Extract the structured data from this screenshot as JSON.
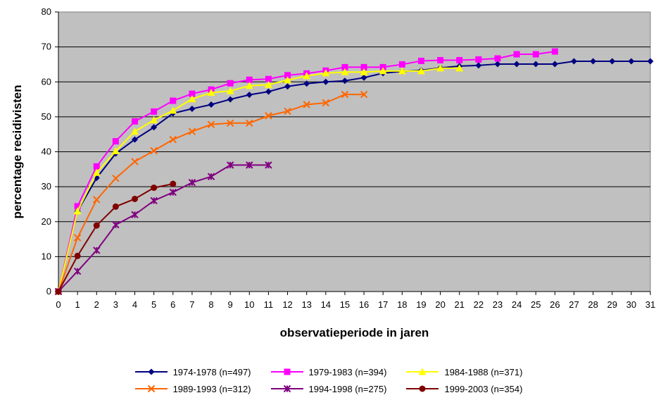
{
  "chart_data": {
    "type": "line",
    "title": "",
    "xlabel": "observatieperiode in jaren",
    "ylabel": "percentage recidivisten",
    "xlim": [
      0,
      31
    ],
    "ylim": [
      0,
      80
    ],
    "x_ticks": [
      "0",
      "1",
      "2",
      "3",
      "4",
      "5",
      "6",
      "7",
      "8",
      "9",
      "10",
      "11",
      "12",
      "13",
      "14",
      "15",
      "16",
      "17",
      "18",
      "19",
      "20",
      "21",
      "22",
      "23",
      "24",
      "25",
      "26",
      "27",
      "28",
      "29",
      "30",
      "31"
    ],
    "y_ticks": [
      "0",
      "10",
      "20",
      "30",
      "40",
      "50",
      "60",
      "70",
      "80"
    ],
    "grid": "horizontal",
    "plot_background": "#c0c0c0",
    "legend_position": "bottom",
    "series": [
      {
        "name": "1974-1978 (n=497)",
        "color": "#000080",
        "marker": "diamond",
        "x": [
          0,
          1,
          2,
          3,
          4,
          5,
          6,
          7,
          8,
          9,
          10,
          11,
          12,
          13,
          14,
          15,
          16,
          17,
          18,
          19,
          20,
          21,
          22,
          23,
          24,
          25,
          26,
          27,
          28,
          29,
          30,
          31
        ],
        "values": [
          0,
          23,
          32.5,
          39.5,
          43.5,
          47,
          51,
          52.3,
          53.5,
          55,
          56.3,
          57.2,
          58.7,
          59.5,
          60,
          60.3,
          61.2,
          62.5,
          63,
          63.3,
          64,
          64.5,
          64.7,
          65.1,
          65.1,
          65.1,
          65.1,
          65.9,
          65.9,
          65.9,
          65.9,
          65.9
        ]
      },
      {
        "name": "1979-1983 (n=394)",
        "color": "#ff00ff",
        "marker": "square",
        "x": [
          0,
          1,
          2,
          3,
          4,
          5,
          6,
          7,
          8,
          9,
          10,
          11,
          12,
          13,
          14,
          15,
          16,
          17,
          18,
          19,
          20,
          21,
          22,
          23,
          24,
          25,
          26
        ],
        "values": [
          0,
          24.4,
          35.8,
          43,
          48.7,
          51.5,
          54.6,
          56.6,
          57.8,
          59.6,
          60.6,
          60.8,
          61.9,
          62.4,
          63.2,
          64.2,
          64.2,
          64.2,
          65,
          66,
          66.2,
          66.2,
          66.4,
          66.7,
          67.9,
          67.9,
          68.7
        ]
      },
      {
        "name": "1984-1988 (n=371)",
        "color": "#ffff00",
        "marker": "triangle",
        "x": [
          0,
          1,
          2,
          3,
          4,
          5,
          6,
          7,
          8,
          9,
          10,
          11,
          12,
          13,
          14,
          15,
          16,
          17,
          18,
          19,
          20,
          21
        ],
        "values": [
          0,
          23,
          34,
          40.2,
          45.8,
          49.1,
          51.8,
          55.1,
          56.9,
          57.4,
          58.9,
          59.2,
          60.5,
          61.7,
          62.5,
          62.8,
          62.8,
          63.1,
          63.1,
          63.1,
          63.9,
          63.9
        ]
      },
      {
        "name": "1989-1993 (n=312)",
        "color": "#ff6600",
        "marker": "x",
        "x": [
          0,
          1,
          2,
          3,
          4,
          5,
          6,
          7,
          8,
          9,
          10,
          11,
          12,
          13,
          14,
          15,
          16
        ],
        "values": [
          0,
          15.4,
          26.3,
          32.4,
          37.2,
          40.3,
          43.5,
          45.8,
          47.8,
          48.2,
          48.2,
          50.3,
          51.6,
          53.5,
          54,
          56.4,
          56.4
        ]
      },
      {
        "name": "1994-1998 (n=275)",
        "color": "#800080",
        "marker": "star",
        "x": [
          0,
          1,
          2,
          3,
          4,
          5,
          6,
          7,
          8,
          9,
          10,
          11
        ],
        "values": [
          0,
          5.8,
          11.8,
          19.1,
          22,
          26,
          28.4,
          31.2,
          32.9,
          36.2,
          36.2,
          36.2
        ]
      },
      {
        "name": "1999-2003 (n=354)",
        "color": "#800000",
        "marker": "circle",
        "x": [
          0,
          1,
          2,
          3,
          4,
          5,
          6
        ],
        "values": [
          0,
          10.2,
          18.9,
          24.3,
          26.5,
          29.7,
          30.8
        ]
      }
    ]
  }
}
